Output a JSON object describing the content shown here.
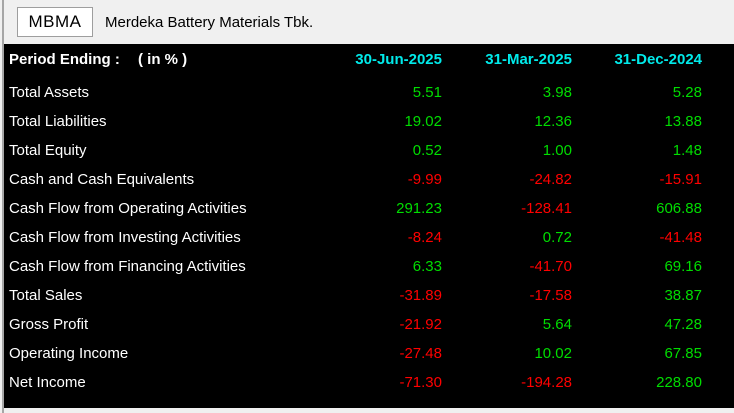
{
  "header": {
    "ticker": "MBMA",
    "company": "Merdeka Battery Materials Tbk."
  },
  "table": {
    "period_label": "Period Ending :",
    "unit_label": "( in % )",
    "columns": [
      "30-Jun-2025",
      "31-Mar-2025",
      "31-Dec-2024"
    ],
    "rows": [
      {
        "label": "Total Assets",
        "values": [
          "5.51",
          "3.98",
          "5.28"
        ]
      },
      {
        "label": "Total Liabilities",
        "values": [
          "19.02",
          "12.36",
          "13.88"
        ]
      },
      {
        "label": "Total Equity",
        "values": [
          "0.52",
          "1.00",
          "1.48"
        ]
      },
      {
        "label": "Cash and Cash Equivalents",
        "values": [
          "-9.99",
          "-24.82",
          "-15.91"
        ]
      },
      {
        "label": "Cash Flow from Operating Activities",
        "values": [
          "291.23",
          "-128.41",
          "606.88"
        ]
      },
      {
        "label": "Cash Flow from Investing Activities",
        "values": [
          "-8.24",
          "0.72",
          "-41.48"
        ]
      },
      {
        "label": "Cash Flow from Financing Activities",
        "values": [
          "6.33",
          "-41.70",
          "69.16"
        ]
      },
      {
        "label": "Total Sales",
        "values": [
          "-31.89",
          "-17.58",
          "38.87"
        ]
      },
      {
        "label": "Gross Profit",
        "values": [
          "-21.92",
          "5.64",
          "47.28"
        ]
      },
      {
        "label": "Operating Income",
        "values": [
          "-27.48",
          "10.02",
          "67.85"
        ]
      },
      {
        "label": "Net Income",
        "values": [
          "-71.30",
          "-194.28",
          "228.80"
        ]
      }
    ]
  },
  "colors": {
    "positive": "#00dd00",
    "negative": "#ff0000",
    "column_header": "#00eaea",
    "panel_background": "#000000",
    "window_background": "#f0f0f0"
  }
}
